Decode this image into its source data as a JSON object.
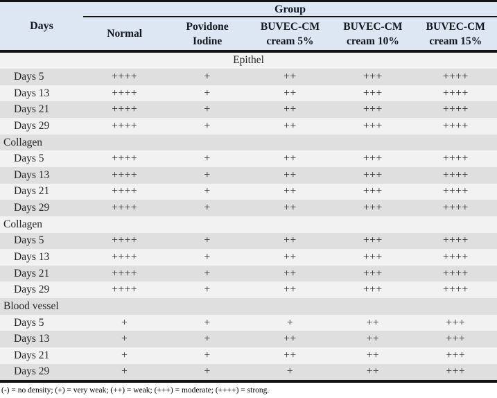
{
  "table": {
    "header": {
      "days_label": "Days",
      "group_label": "Group",
      "columns": [
        {
          "line1": "Normal",
          "line2": ""
        },
        {
          "line1": "Povidone",
          "line2": "Iodine"
        },
        {
          "line1": "BUVEC-CM",
          "line2": "cream 5%"
        },
        {
          "line1": "BUVEC-CM",
          "line2": "cream 10%"
        },
        {
          "line1": "BUVEC-CM",
          "line2": "cream 15%"
        }
      ]
    },
    "sections": [
      {
        "name": "Epithel",
        "align": "center",
        "rows": [
          {
            "label": "Days 5",
            "values": [
              "++++",
              "+",
              "++",
              "+++",
              "++++"
            ]
          },
          {
            "label": "Days 13",
            "values": [
              "++++",
              "+",
              "++",
              "+++",
              "++++"
            ]
          },
          {
            "label": "Days 21",
            "values": [
              "++++",
              "+",
              "++",
              "+++",
              "++++"
            ]
          },
          {
            "label": "Days 29",
            "values": [
              "++++",
              "+",
              "++",
              "+++",
              "++++"
            ]
          }
        ]
      },
      {
        "name": "Collagen",
        "align": "left",
        "rows": [
          {
            "label": "Days 5",
            "values": [
              "++++",
              "+",
              "++",
              "+++",
              "++++"
            ]
          },
          {
            "label": "Days 13",
            "values": [
              "++++",
              "+",
              "++",
              "+++",
              "++++"
            ]
          },
          {
            "label": "Days 21",
            "values": [
              "++++",
              "+",
              "++",
              "+++",
              "++++"
            ]
          },
          {
            "label": "Days 29",
            "values": [
              "++++",
              "+",
              "++",
              "+++",
              "++++"
            ]
          }
        ]
      },
      {
        "name": "Collagen",
        "align": "left",
        "rows": [
          {
            "label": "Days 5",
            "values": [
              "++++",
              "+",
              "++",
              "+++",
              "++++"
            ]
          },
          {
            "label": "Days 13",
            "values": [
              "++++",
              "+",
              "++",
              "+++",
              "++++"
            ]
          },
          {
            "label": "Days 21",
            "values": [
              "++++",
              "+",
              "++",
              "+++",
              "++++"
            ]
          },
          {
            "label": "Days 29",
            "values": [
              "++++",
              "+",
              "++",
              "+++",
              "++++"
            ]
          }
        ]
      },
      {
        "name": "Blood vessel",
        "align": "left",
        "rows": [
          {
            "label": "Days 5",
            "values": [
              "+",
              "+",
              "+",
              "++",
              "+++"
            ]
          },
          {
            "label": "Days 13",
            "values": [
              "+",
              "+",
              "++",
              "++",
              "+++"
            ]
          },
          {
            "label": "Days 21",
            "values": [
              "+",
              "+",
              "++",
              "++",
              "+++"
            ]
          },
          {
            "label": "Days 29",
            "values": [
              "+",
              "+",
              "+",
              "++",
              "+++"
            ]
          }
        ]
      }
    ],
    "footnote": "(-) = no density; (+) = very weak; (++) = weak; (+++) = moderate; (++++) = strong.",
    "legend": {
      "no_density": "-",
      "very_weak": "+",
      "weak": "++",
      "moderate": "+++",
      "strong": "++++"
    }
  },
  "colors": {
    "header_bg": "#dde7f3",
    "shaded_row_bg": "#dfdfdf",
    "light_row_bg": "#f2f2f2",
    "border": "#121212",
    "header_text": "#12161d",
    "body_text": "#26262a"
  }
}
